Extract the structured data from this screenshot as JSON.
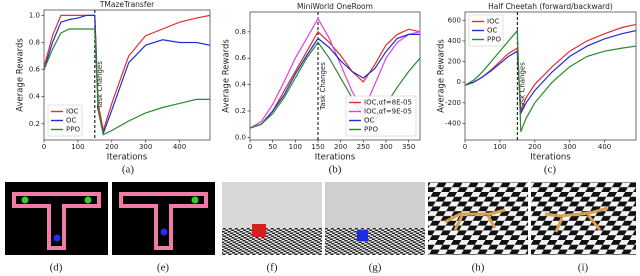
{
  "chart_data": [
    {
      "type": "line",
      "title": "TMazeTransfer",
      "xlabel": "Iterations",
      "ylabel": "Average Rewards",
      "x": [
        0,
        25,
        50,
        75,
        100,
        125,
        150,
        160,
        175,
        200,
        250,
        300,
        350,
        400,
        450,
        490
      ],
      "series": [
        {
          "name": "IOC",
          "color": "#e03030",
          "values": [
            0.62,
            0.85,
            1.0,
            1.0,
            1.0,
            1.0,
            1.0,
            0.35,
            0.15,
            0.35,
            0.7,
            0.85,
            0.9,
            0.95,
            0.98,
            1.0
          ]
        },
        {
          "name": "OC",
          "color": "#2030d0",
          "values": [
            0.6,
            0.8,
            0.95,
            0.97,
            0.98,
            1.0,
            1.0,
            0.3,
            0.13,
            0.3,
            0.65,
            0.78,
            0.82,
            0.8,
            0.8,
            0.78
          ]
        },
        {
          "name": "PPO",
          "color": "#2a8a2a",
          "values": [
            0.6,
            0.75,
            0.87,
            0.9,
            0.9,
            0.9,
            0.9,
            0.3,
            0.12,
            0.15,
            0.22,
            0.28,
            0.32,
            0.35,
            0.38,
            0.38
          ]
        }
      ],
      "xlim": [
        0,
        490
      ],
      "xticks": [
        0,
        100,
        200,
        300,
        400
      ],
      "ylim": [
        0.08,
        1.04
      ],
      "yticks": [
        0.2,
        0.4,
        0.6,
        0.8,
        {
          "value": 1.0,
          "label": "1.0"
        }
      ],
      "annotation": {
        "text": "Task Changes",
        "x": 150
      },
      "legend": "lower left",
      "grid": false,
      "caption": "(a)"
    },
    {
      "type": "line",
      "title": "MiniWorld OneRoom",
      "xlabel": "Iterations",
      "ylabel": "Average Rewards",
      "x": [
        0,
        25,
        50,
        75,
        100,
        125,
        150,
        175,
        200,
        225,
        250,
        275,
        300,
        325,
        350,
        375
      ],
      "series": [
        {
          "name": "IOC,αf=8E-05",
          "color": "#e03030",
          "values": [
            0.07,
            0.1,
            0.2,
            0.35,
            0.5,
            0.65,
            0.8,
            0.72,
            0.62,
            0.5,
            0.42,
            0.55,
            0.7,
            0.78,
            0.82,
            0.8
          ]
        },
        {
          "name": "IOC,αf=9E-05",
          "color": "#e040e0",
          "values": [
            0.07,
            0.12,
            0.25,
            0.42,
            0.6,
            0.75,
            0.9,
            0.75,
            0.55,
            0.35,
            0.2,
            0.4,
            0.6,
            0.72,
            0.78,
            0.8
          ]
        },
        {
          "name": "OC",
          "color": "#2030d0",
          "values": [
            0.07,
            0.1,
            0.2,
            0.32,
            0.48,
            0.62,
            0.75,
            0.68,
            0.58,
            0.5,
            0.45,
            0.52,
            0.65,
            0.75,
            0.78,
            0.78
          ]
        },
        {
          "name": "PPO",
          "color": "#2a8a2a",
          "values": [
            0.07,
            0.1,
            0.18,
            0.3,
            0.45,
            0.6,
            0.72,
            0.6,
            0.45,
            0.3,
            0.15,
            0.12,
            0.25,
            0.38,
            0.5,
            0.6
          ]
        }
      ],
      "xlim": [
        0,
        375
      ],
      "xticks": [
        0,
        50,
        100,
        150,
        200,
        250,
        300,
        350
      ],
      "ylim": [
        -0.02,
        0.95
      ],
      "yticks": [
        {
          "value": 0,
          "label": "0.0"
        },
        0.2,
        0.4,
        0.6,
        0.8
      ],
      "annotation": {
        "text": "Task Changes",
        "x": 150
      },
      "legend": "lower right",
      "grid": false,
      "caption": "(b)"
    },
    {
      "type": "line",
      "title": "Half Cheetah (forward/backward)",
      "xlabel": "Iterations",
      "ylabel": "Average Rewards",
      "x": [
        0,
        25,
        50,
        75,
        100,
        125,
        150,
        160,
        175,
        200,
        250,
        300,
        350,
        400,
        450,
        490
      ],
      "series": [
        {
          "name": "IOC",
          "color": "#e03030",
          "values": [
            -30,
            0,
            50,
            120,
            200,
            280,
            330,
            -280,
            -150,
            -20,
            150,
            300,
            400,
            470,
            530,
            560
          ]
        },
        {
          "name": "OC",
          "color": "#2030d0",
          "values": [
            -30,
            0,
            50,
            110,
            180,
            250,
            300,
            -300,
            -200,
            -80,
            100,
            250,
            350,
            420,
            470,
            500
          ]
        },
        {
          "name": "PPO",
          "color": "#2a8a2a",
          "values": [
            -30,
            20,
            100,
            200,
            300,
            400,
            500,
            -480,
            -350,
            -200,
            0,
            150,
            250,
            300,
            330,
            350
          ]
        }
      ],
      "xlim": [
        0,
        490
      ],
      "xticks": [
        0,
        100,
        200,
        300,
        400
      ],
      "ylim": [
        -560,
        680
      ],
      "yticks": [
        -400,
        -200,
        0,
        200,
        400,
        600
      ],
      "annotation": {
        "text": "Task Changes",
        "x": 150
      },
      "legend": "upper left",
      "grid": false,
      "caption": "(c)"
    }
  ],
  "panels": [
    "(d)",
    "(e)",
    "(f)",
    "(g)",
    "(h)",
    "(i)"
  ]
}
